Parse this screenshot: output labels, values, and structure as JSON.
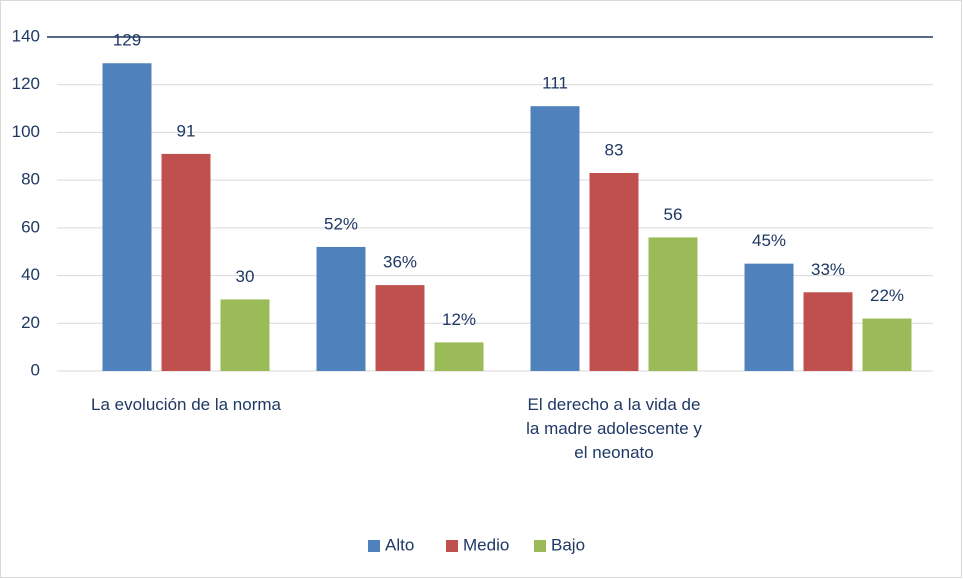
{
  "chart_data": {
    "type": "bar",
    "categories": [
      "La evolución de la norma",
      null,
      "El derecho a la vida de la madre adolescente y el neonato",
      null
    ],
    "series": [
      {
        "name": "Alto",
        "color": "#4f81bd",
        "values": [
          129,
          52,
          111,
          45
        ],
        "value_labels": [
          "129",
          "52%",
          "111",
          "45%"
        ]
      },
      {
        "name": "Medio",
        "color": "#c0504d",
        "values": [
          91,
          36,
          83,
          33
        ],
        "value_labels": [
          "91",
          "36%",
          "83",
          "33%"
        ]
      },
      {
        "name": "Bajo",
        "color": "#9bbb59",
        "values": [
          30,
          12,
          56,
          22
        ],
        "value_labels": [
          "30",
          "12%",
          "56",
          "22%"
        ]
      }
    ],
    "ylim": [
      0,
      140
    ],
    "yticks": [
      0,
      20,
      40,
      60,
      80,
      100,
      120,
      140
    ],
    "grid": true,
    "legend": "bottom"
  }
}
